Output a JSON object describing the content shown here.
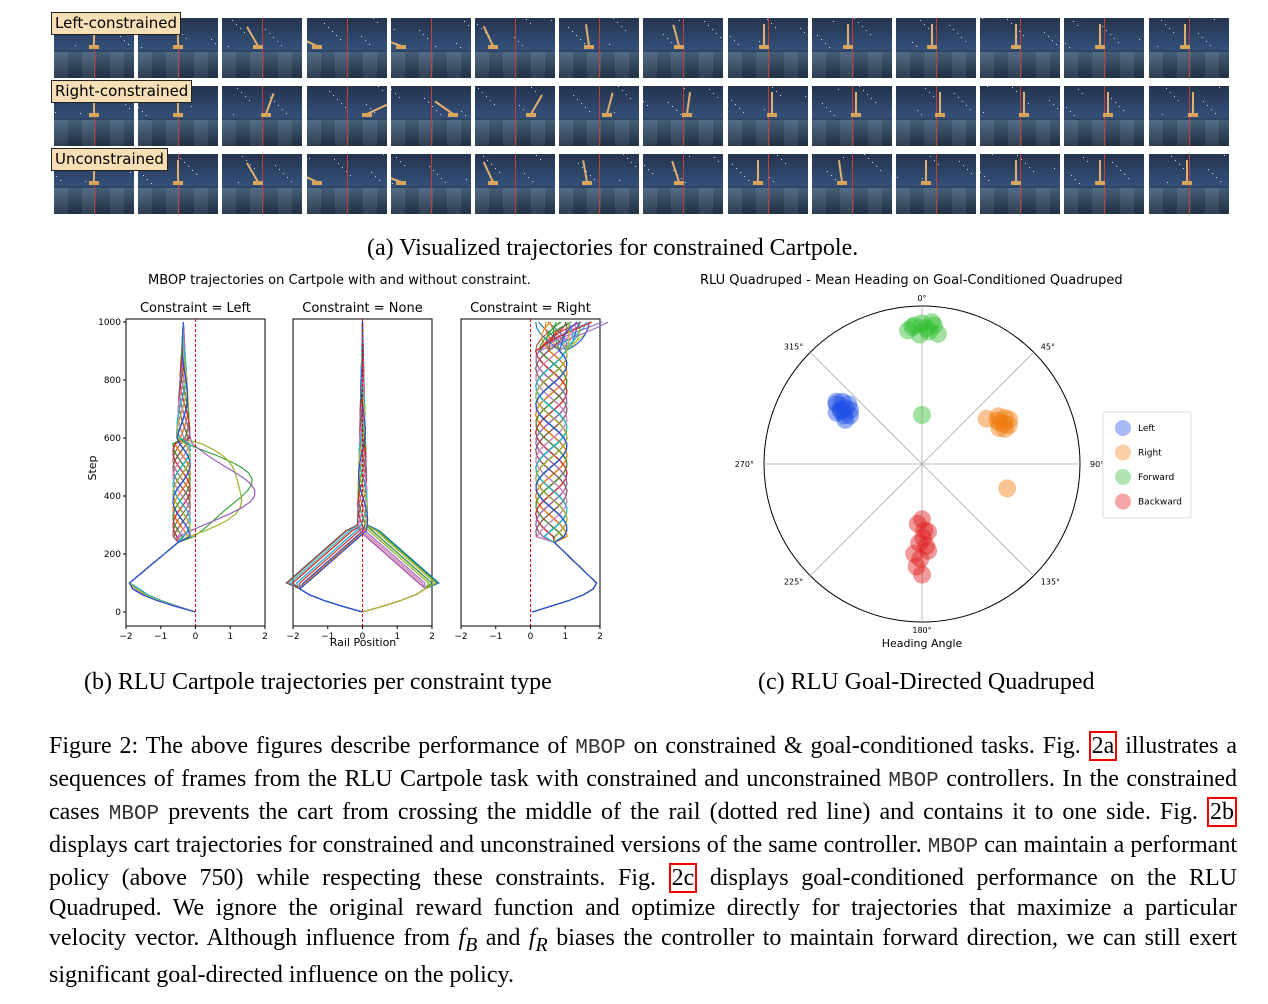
{
  "panel_a": {
    "rows": [
      {
        "label": "Left-constrained"
      },
      {
        "label": "Right-constrained"
      },
      {
        "label": "Unconstrained"
      }
    ],
    "caption": "(a) Visualized trajectories for constrained Cartpole."
  },
  "panel_b": {
    "title": "MBOP trajectories on Cartpole with and without constraint.",
    "subplots": [
      {
        "title": "Constraint = Left"
      },
      {
        "title": "Constraint = None"
      },
      {
        "title": "Constraint = Right"
      }
    ],
    "ylabel": "Step",
    "xlabel": "Rail Position",
    "caption": "(b) RLU Cartpole trajectories per constraint type"
  },
  "panel_c": {
    "title": "RLU Quadruped - Mean Heading on Goal-Conditioned Quadruped",
    "xlabel": "Heading Angle",
    "caption": "(c) RLU Goal-Directed Quadruped"
  },
  "chart_data": [
    {
      "type": "line",
      "title": "Constraint = Left",
      "xlabel": "",
      "ylabel": "Step",
      "xlim": [
        -2,
        2
      ],
      "ylim": [
        0,
        1000
      ],
      "x_ticks": [
        "−2",
        "−1",
        "0",
        "1",
        "2"
      ],
      "y_ticks": [
        "0",
        "200",
        "400",
        "600",
        "800",
        "1000"
      ],
      "reference_line": 0
    },
    {
      "type": "line",
      "title": "Constraint = None",
      "xlabel": "Rail Position",
      "ylabel": "",
      "xlim": [
        -2,
        2
      ],
      "ylim": [
        0,
        1000
      ],
      "x_ticks": [
        "−2",
        "−1",
        "0",
        "1",
        "2"
      ],
      "reference_line": 0
    },
    {
      "type": "line",
      "title": "Constraint = Right",
      "xlabel": "",
      "ylabel": "",
      "xlim": [
        -2,
        2
      ],
      "ylim": [
        0,
        1000
      ],
      "x_ticks": [
        "−2",
        "−1",
        "0",
        "1",
        "2"
      ],
      "reference_line": 0
    },
    {
      "type": "scatter",
      "title": "RLU Quadruped - Mean Heading on Goal-Conditioned Quadruped",
      "xlabel": "Heading Angle",
      "angle_ticks": [
        "0°",
        "45°",
        "90°",
        "135°",
        "180°",
        "225°",
        "270°",
        "315°"
      ],
      "legend": {
        "position": "right",
        "entries": [
          {
            "name": "Left",
            "color": "#6f8df2"
          },
          {
            "name": "Right",
            "color": "#f7b06a"
          },
          {
            "name": "Forward",
            "color": "#7fd27f"
          },
          {
            "name": "Backward",
            "color": "#ee6a6a"
          }
        ]
      },
      "series": [
        {
          "name": "Left",
          "color": "#1f4fe6",
          "points": [
            {
              "angle": 304,
              "r": 0.62
            },
            {
              "angle": 306,
              "r": 0.6
            },
            {
              "angle": 302,
              "r": 0.58
            },
            {
              "angle": 308,
              "r": 0.64
            },
            {
              "angle": 300,
              "r": 0.56
            },
            {
              "angle": 305,
              "r": 0.66
            },
            {
              "angle": 303,
              "r": 0.61
            },
            {
              "angle": 307,
              "r": 0.57
            },
            {
              "angle": 301,
              "r": 0.63
            },
            {
              "angle": 309,
              "r": 0.6
            },
            {
              "angle": 304,
              "r": 0.55
            },
            {
              "angle": 306,
              "r": 0.67
            }
          ]
        },
        {
          "name": "Right",
          "color": "#f07c10",
          "points": [
            {
              "angle": 62,
              "r": 0.56
            },
            {
              "angle": 64,
              "r": 0.58
            },
            {
              "angle": 60,
              "r": 0.55
            },
            {
              "angle": 66,
              "r": 0.6
            },
            {
              "angle": 63,
              "r": 0.62
            },
            {
              "angle": 58,
              "r": 0.57
            },
            {
              "angle": 65,
              "r": 0.54
            },
            {
              "angle": 61,
              "r": 0.6
            },
            {
              "angle": 55,
              "r": 0.5
            },
            {
              "angle": 67,
              "r": 0.57
            },
            {
              "angle": 106,
              "r": 0.56
            }
          ]
        },
        {
          "name": "Forward",
          "color": "#2fbf2f",
          "points": [
            {
              "angle": 357,
              "r": 0.88
            },
            {
              "angle": 2,
              "r": 0.86
            },
            {
              "angle": 5,
              "r": 0.88
            },
            {
              "angle": 359,
              "r": 0.82
            },
            {
              "angle": 3,
              "r": 0.84
            },
            {
              "angle": 354,
              "r": 0.85
            },
            {
              "angle": 7,
              "r": 0.83
            },
            {
              "angle": 0,
              "r": 0.89
            },
            {
              "angle": 4,
              "r": 0.9
            },
            {
              "angle": 356,
              "r": 0.87
            },
            {
              "angle": 0,
              "r": 0.31
            }
          ]
        },
        {
          "name": "Backward",
          "color": "#e02020",
          "points": [
            {
              "angle": 180,
              "r": 0.35
            },
            {
              "angle": 178,
              "r": 0.42
            },
            {
              "angle": 182,
              "r": 0.5
            },
            {
              "angle": 176,
              "r": 0.55
            },
            {
              "angle": 184,
              "r": 0.38
            },
            {
              "angle": 181,
              "r": 0.6
            },
            {
              "angle": 179,
              "r": 0.47
            },
            {
              "angle": 183,
              "r": 0.65
            },
            {
              "angle": 177,
              "r": 0.52
            },
            {
              "angle": 180,
              "r": 0.7
            },
            {
              "angle": 185,
              "r": 0.57
            },
            {
              "angle": 175,
              "r": 0.43
            }
          ]
        }
      ]
    }
  ],
  "figure_caption": {
    "lead": "Figure 2:",
    "t1": " The above figures describe performance of ",
    "mono1": "MBOP",
    "t2": " on constrained & goal-conditioned tasks. Fig. ",
    "ref_a": "2a",
    "t3": " illustrates a sequences of frames from the RLU Cartpole task with constrained and unconstrained ",
    "mono2": "MBOP",
    "t4": " controllers. In the constrained cases ",
    "mono3": "MBOP",
    "t5": " prevents the cart from crossing the middle of the rail (dotted red line) and contains it to one side. Fig. ",
    "ref_b": "2b",
    "t6": " displays cart trajectories for constrained and unconstrained versions of the same controller. ",
    "mono4": "MBOP",
    "t7": " can maintain a performant policy (above 750) while respecting these constraints. Fig. ",
    "ref_c": "2c",
    "t8": " displays goal-conditioned performance on the RLU Quadruped. We ignore the original reward function and optimize directly for trajectories that maximize a particular velocity vector. Although influence from ",
    "fB_f": "f",
    "fB_sub": "B",
    "t9": " and ",
    "fR_f": "f",
    "fR_sub": "R",
    "t10": " biases the controller to maintain forward direction, we can still exert significant goal-directed influence on the policy."
  }
}
